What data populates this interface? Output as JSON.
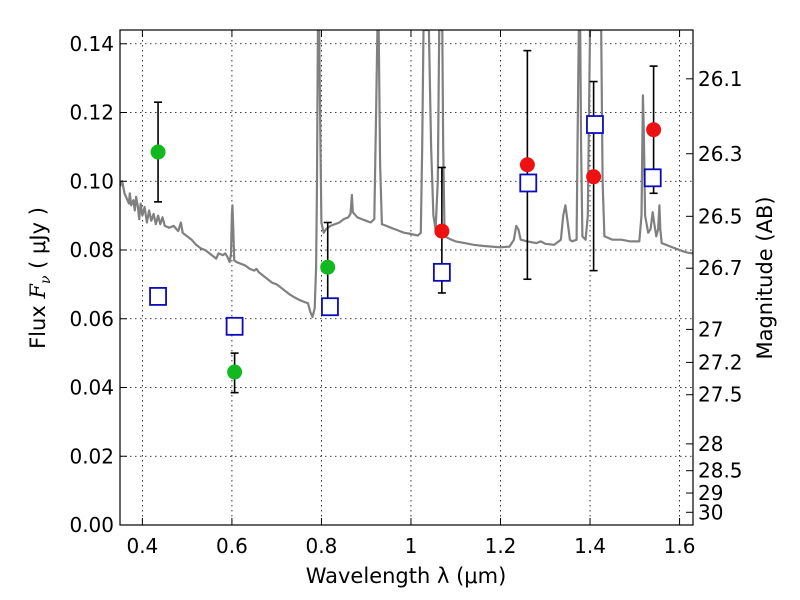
{
  "chart_data": {
    "type": "scatter",
    "xlabel": "Wavelength  λ (μm)",
    "ylabel_prefix": "Flux ",
    "ylabel_symbol": "F",
    "ylabel_sub": "ν",
    "ylabel_unit": "  ( μJy )",
    "y2label": "Magnitude (AB)",
    "xlim": [
      0.35,
      1.63
    ],
    "ylim": [
      0.0,
      0.144
    ],
    "xticks": [
      0.4,
      0.6,
      0.8,
      1.0,
      1.2,
      1.4,
      1.6
    ],
    "xtick_labels": [
      "0.4",
      "0.6",
      "0.8",
      "1",
      "1.2",
      "1.4",
      "1.6"
    ],
    "yticks": [
      0.0,
      0.02,
      0.04,
      0.06,
      0.08,
      0.1,
      0.12,
      0.14
    ],
    "ytick_labels": [
      "0.00",
      "0.02",
      "0.04",
      "0.06",
      "0.08",
      "0.10",
      "0.12",
      "0.14"
    ],
    "y2ticks": [
      {
        "label": "26.1",
        "flux": 0.1298
      },
      {
        "label": "26.3",
        "flux": 0.108
      },
      {
        "label": "26.5",
        "flux": 0.0898
      },
      {
        "label": "26.7",
        "flux": 0.0747
      },
      {
        "label": "27",
        "flux": 0.0569
      },
      {
        "label": "27.2",
        "flux": 0.0473
      },
      {
        "label": "27.5",
        "flux": 0.0379
      },
      {
        "label": "28",
        "flux": 0.0236
      },
      {
        "label": "28.5",
        "flux": 0.0158
      },
      {
        "label": "29",
        "flux": 0.0093
      },
      {
        "label": "30",
        "flux": 0.0037
      }
    ],
    "grid": true,
    "colors": {
      "green": "#12b81f",
      "red": "#ee1111",
      "blue": "#0b0bbd",
      "spectrum": "#808080",
      "errorbar": "#000000"
    },
    "green_points": [
      {
        "x": 0.435,
        "y": 0.1085,
        "ylo": 0.094,
        "yhi": 0.123
      },
      {
        "x": 0.606,
        "y": 0.0445,
        "ylo": 0.0385,
        "yhi": 0.05
      },
      {
        "x": 0.814,
        "y": 0.075,
        "ylo": 0.062,
        "yhi": 0.088
      }
    ],
    "red_points": [
      {
        "x": 1.069,
        "y": 0.0855,
        "ylo": 0.0675,
        "yhi": 0.104
      },
      {
        "x": 1.26,
        "y": 0.1048,
        "ylo": 0.0715,
        "yhi": 0.138
      },
      {
        "x": 1.408,
        "y": 0.1013,
        "ylo": 0.074,
        "yhi": 0.129
      },
      {
        "x": 1.542,
        "y": 0.115,
        "ylo": 0.0965,
        "yhi": 0.1335
      }
    ],
    "model_points": [
      {
        "x": 0.435,
        "y": 0.0665
      },
      {
        "x": 0.606,
        "y": 0.0578
      },
      {
        "x": 0.819,
        "y": 0.0635
      },
      {
        "x": 1.069,
        "y": 0.0735
      },
      {
        "x": 1.262,
        "y": 0.0995
      },
      {
        "x": 1.411,
        "y": 0.1165
      },
      {
        "x": 1.54,
        "y": 0.101
      }
    ],
    "spectrum": [
      [
        0.35,
        0.0985
      ],
      [
        0.355,
        0.1
      ],
      [
        0.36,
        0.0965
      ],
      [
        0.365,
        0.095
      ],
      [
        0.37,
        0.0935
      ],
      [
        0.372,
        0.0965
      ],
      [
        0.375,
        0.093
      ],
      [
        0.38,
        0.0945
      ],
      [
        0.383,
        0.0915
      ],
      [
        0.386,
        0.0955
      ],
      [
        0.39,
        0.0925
      ],
      [
        0.393,
        0.089
      ],
      [
        0.396,
        0.0935
      ],
      [
        0.4,
        0.09
      ],
      [
        0.405,
        0.0925
      ],
      [
        0.41,
        0.088
      ],
      [
        0.415,
        0.0915
      ],
      [
        0.42,
        0.0885
      ],
      [
        0.425,
        0.0905
      ],
      [
        0.43,
        0.0875
      ],
      [
        0.435,
        0.09
      ],
      [
        0.44,
        0.0875
      ],
      [
        0.445,
        0.0895
      ],
      [
        0.45,
        0.087
      ],
      [
        0.46,
        0.0865
      ],
      [
        0.47,
        0.087
      ],
      [
        0.48,
        0.0855
      ],
      [
        0.486,
        0.088
      ],
      [
        0.49,
        0.085
      ],
      [
        0.5,
        0.084
      ],
      [
        0.51,
        0.083
      ],
      [
        0.52,
        0.0815
      ],
      [
        0.53,
        0.0805
      ],
      [
        0.54,
        0.08
      ],
      [
        0.55,
        0.079
      ],
      [
        0.56,
        0.078
      ],
      [
        0.565,
        0.0775
      ],
      [
        0.57,
        0.079
      ],
      [
        0.58,
        0.0785
      ],
      [
        0.585,
        0.079
      ],
      [
        0.59,
        0.078
      ],
      [
        0.595,
        0.0765
      ],
      [
        0.598,
        0.079
      ],
      [
        0.6,
        0.0905
      ],
      [
        0.601,
        0.093
      ],
      [
        0.603,
        0.086
      ],
      [
        0.605,
        0.077
      ],
      [
        0.61,
        0.0765
      ],
      [
        0.62,
        0.076
      ],
      [
        0.63,
        0.0755
      ],
      [
        0.64,
        0.0745
      ],
      [
        0.65,
        0.074
      ],
      [
        0.655,
        0.0745
      ],
      [
        0.66,
        0.0735
      ],
      [
        0.67,
        0.0725
      ],
      [
        0.68,
        0.0715
      ],
      [
        0.69,
        0.0705
      ],
      [
        0.7,
        0.07
      ],
      [
        0.71,
        0.069
      ],
      [
        0.72,
        0.068
      ],
      [
        0.73,
        0.067
      ],
      [
        0.74,
        0.0662
      ],
      [
        0.75,
        0.0655
      ],
      [
        0.76,
        0.065
      ],
      [
        0.77,
        0.0645
      ],
      [
        0.775,
        0.062
      ],
      [
        0.78,
        0.0605
      ],
      [
        0.785,
        0.063
      ],
      [
        0.788,
        0.075
      ],
      [
        0.79,
        0.1
      ],
      [
        0.792,
        0.144
      ],
      [
        0.795,
        0.144
      ],
      [
        0.797,
        0.12
      ],
      [
        0.8,
        0.088
      ],
      [
        0.805,
        0.085
      ],
      [
        0.81,
        0.086
      ],
      [
        0.82,
        0.087
      ],
      [
        0.83,
        0.0875
      ],
      [
        0.84,
        0.088
      ],
      [
        0.85,
        0.089
      ],
      [
        0.86,
        0.0895
      ],
      [
        0.865,
        0.0905
      ],
      [
        0.868,
        0.096
      ],
      [
        0.87,
        0.091
      ],
      [
        0.88,
        0.0895
      ],
      [
        0.89,
        0.089
      ],
      [
        0.9,
        0.0885
      ],
      [
        0.91,
        0.088
      ],
      [
        0.918,
        0.089
      ],
      [
        0.922,
        0.12
      ],
      [
        0.925,
        0.144
      ],
      [
        0.928,
        0.144
      ],
      [
        0.931,
        0.105
      ],
      [
        0.935,
        0.0875
      ],
      [
        0.945,
        0.087
      ],
      [
        0.955,
        0.0865
      ],
      [
        0.965,
        0.086
      ],
      [
        0.975,
        0.0855
      ],
      [
        0.985,
        0.085
      ],
      [
        0.995,
        0.0848
      ],
      [
        1.005,
        0.0845
      ],
      [
        1.015,
        0.0842
      ],
      [
        1.022,
        0.085
      ],
      [
        1.025,
        0.11
      ],
      [
        1.028,
        0.144
      ],
      [
        1.04,
        0.144
      ],
      [
        1.045,
        0.11
      ],
      [
        1.05,
        0.09
      ],
      [
        1.055,
        0.086
      ],
      [
        1.06,
        0.1
      ],
      [
        1.063,
        0.144
      ],
      [
        1.07,
        0.144
      ],
      [
        1.072,
        0.11
      ],
      [
        1.075,
        0.084
      ],
      [
        1.09,
        0.083
      ],
      [
        1.1,
        0.0825
      ],
      [
        1.12,
        0.082
      ],
      [
        1.14,
        0.0815
      ],
      [
        1.16,
        0.0812
      ],
      [
        1.18,
        0.081
      ],
      [
        1.2,
        0.0808
      ],
      [
        1.22,
        0.081
      ],
      [
        1.23,
        0.083
      ],
      [
        1.235,
        0.087
      ],
      [
        1.24,
        0.086
      ],
      [
        1.245,
        0.083
      ],
      [
        1.26,
        0.0825
      ],
      [
        1.28,
        0.082
      ],
      [
        1.29,
        0.0825
      ],
      [
        1.3,
        0.0818
      ],
      [
        1.32,
        0.0815
      ],
      [
        1.335,
        0.083
      ],
      [
        1.34,
        0.09
      ],
      [
        1.345,
        0.093
      ],
      [
        1.35,
        0.088
      ],
      [
        1.355,
        0.083
      ],
      [
        1.36,
        0.0825
      ],
      [
        1.37,
        0.083
      ],
      [
        1.372,
        0.11
      ],
      [
        1.375,
        0.144
      ],
      [
        1.378,
        0.144
      ],
      [
        1.38,
        0.11
      ],
      [
        1.383,
        0.084
      ],
      [
        1.39,
        0.083
      ],
      [
        1.395,
        0.09
      ],
      [
        1.4,
        0.144
      ],
      [
        1.425,
        0.144
      ],
      [
        1.428,
        0.1
      ],
      [
        1.432,
        0.084
      ],
      [
        1.45,
        0.083
      ],
      [
        1.47,
        0.083
      ],
      [
        1.49,
        0.0825
      ],
      [
        1.51,
        0.0825
      ],
      [
        1.515,
        0.09
      ],
      [
        1.518,
        0.125
      ],
      [
        1.52,
        0.115
      ],
      [
        1.523,
        0.09
      ],
      [
        1.53,
        0.085
      ],
      [
        1.535,
        0.086
      ],
      [
        1.54,
        0.091
      ],
      [
        1.543,
        0.088
      ],
      [
        1.548,
        0.084
      ],
      [
        1.552,
        0.086
      ],
      [
        1.555,
        0.093
      ],
      [
        1.557,
        0.086
      ],
      [
        1.56,
        0.082
      ],
      [
        1.57,
        0.0815
      ],
      [
        1.58,
        0.081
      ],
      [
        1.59,
        0.0805
      ],
      [
        1.6,
        0.08
      ],
      [
        1.61,
        0.0795
      ],
      [
        1.62,
        0.0792
      ],
      [
        1.63,
        0.079
      ]
    ]
  }
}
